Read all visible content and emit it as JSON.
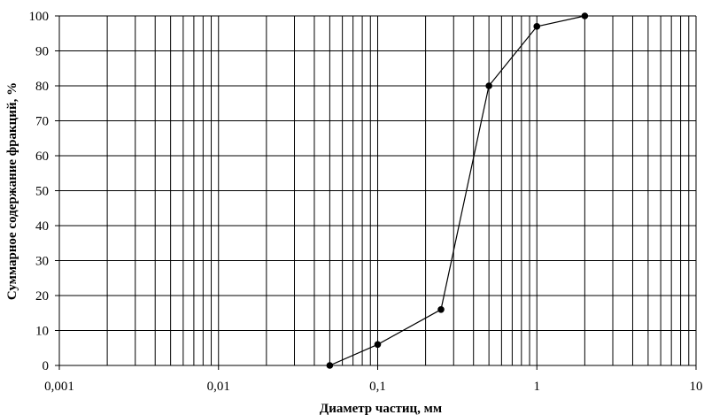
{
  "chart_data": {
    "type": "line",
    "title": "",
    "xlabel": "Диаметр частиц, мм",
    "ylabel": "Суммарное содержание фракций, %",
    "x_scale": "log",
    "xlim": [
      0.001,
      10
    ],
    "ylim": [
      0,
      100
    ],
    "grid": true,
    "legend": "none",
    "x_tick_labels": [
      "0,001",
      "0,01",
      "0,1",
      "1",
      "10"
    ],
    "y_tick_labels": [
      "0",
      "10",
      "20",
      "30",
      "40",
      "50",
      "60",
      "70",
      "80",
      "90",
      "100"
    ],
    "series": [
      {
        "x": [
          0.05,
          0.1,
          0.25,
          0.5,
          1,
          2
        ],
        "y": [
          0,
          6,
          16,
          80,
          97,
          100
        ]
      }
    ],
    "colors": {
      "line": "#000000",
      "marker": "#000000",
      "grid": "#000000"
    }
  }
}
